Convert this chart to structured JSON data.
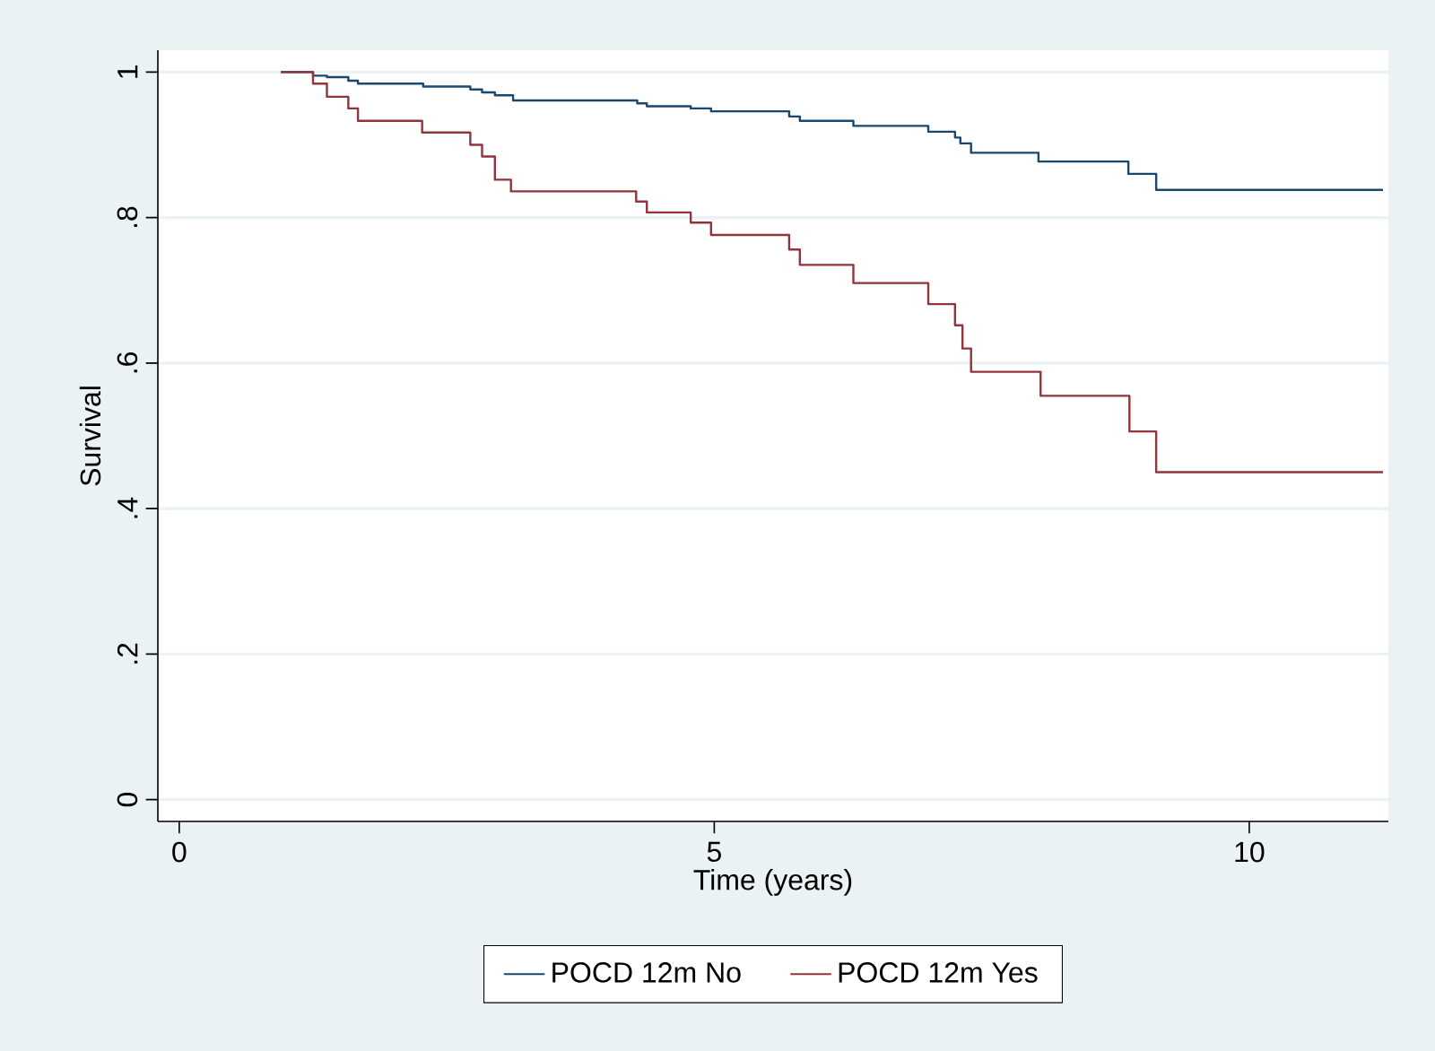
{
  "chart_data": {
    "type": "step",
    "xlabel": "Time (years)",
    "ylabel": "Survival",
    "xlim": [
      -0.2,
      11.3
    ],
    "ylim": [
      -0.03,
      1.03
    ],
    "xticks": [
      0,
      5,
      10
    ],
    "yticks": [
      {
        "value": 0,
        "label": "0"
      },
      {
        "value": 0.2,
        "label": ".2"
      },
      {
        "value": 0.4,
        "label": ".4"
      },
      {
        "value": 0.6,
        "label": ".6"
      },
      {
        "value": 0.8,
        "label": ".8"
      },
      {
        "value": 1,
        "label": "1"
      }
    ],
    "grid": "y",
    "legend": "bottom",
    "series": [
      {
        "name": "POCD 12m No",
        "color": "#1a476f",
        "x": [
          0.95,
          1.25,
          1.38,
          1.58,
          1.67,
          2.28,
          2.72,
          2.83,
          2.95,
          3.12,
          4.28,
          4.37,
          4.78,
          4.97,
          5.7,
          5.8,
          6.3,
          7.0,
          7.25,
          7.3,
          7.4,
          8.03,
          8.87,
          9.13,
          11.25
        ],
        "values": [
          1,
          0.995,
          0.993,
          0.988,
          0.984,
          0.98,
          0.976,
          0.972,
          0.968,
          0.961,
          0.957,
          0.953,
          0.95,
          0.946,
          0.939,
          0.933,
          0.926,
          0.918,
          0.91,
          0.902,
          0.889,
          0.877,
          0.86,
          0.838,
          0.838
        ]
      },
      {
        "name": "POCD 12m Yes",
        "color": "#90353b",
        "x": [
          0.95,
          1.25,
          1.38,
          1.58,
          1.67,
          2.27,
          2.72,
          2.83,
          2.95,
          3.1,
          4.27,
          4.37,
          4.78,
          4.97,
          5.7,
          5.8,
          6.3,
          7.0,
          7.25,
          7.32,
          7.4,
          8.05,
          8.88,
          9.13,
          11.25
        ],
        "values": [
          1,
          0.984,
          0.966,
          0.95,
          0.933,
          0.917,
          0.9,
          0.884,
          0.852,
          0.836,
          0.822,
          0.807,
          0.793,
          0.776,
          0.756,
          0.735,
          0.71,
          0.681,
          0.652,
          0.62,
          0.588,
          0.555,
          0.506,
          0.45,
          0.45
        ]
      }
    ]
  }
}
